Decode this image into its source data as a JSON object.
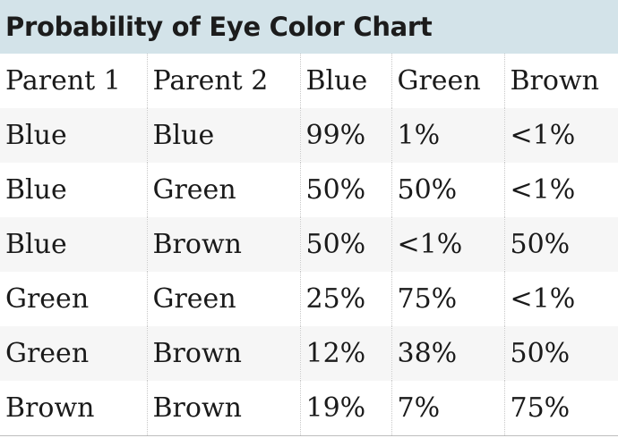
{
  "chart_data": {
    "type": "table",
    "title": "Probability of Eye Color Chart",
    "columns": [
      "Parent 1",
      "Parent 2",
      "Blue",
      "Green",
      "Brown"
    ],
    "rows": [
      [
        "Blue",
        "Blue",
        "99%",
        "1%",
        "<1%"
      ],
      [
        "Blue",
        "Green",
        "50%",
        "50%",
        "<1%"
      ],
      [
        "Blue",
        "Brown",
        "50%",
        "<1%",
        "50%"
      ],
      [
        "Green",
        "Green",
        "25%",
        "75%",
        "<1%"
      ],
      [
        "Green",
        "Brown",
        "12%",
        "38%",
        "50%"
      ],
      [
        "Brown",
        "Brown",
        "19%",
        "7%",
        "75%"
      ]
    ]
  },
  "colors": {
    "title_background": "#d3e3e9",
    "stripe": "#f6f6f6"
  }
}
